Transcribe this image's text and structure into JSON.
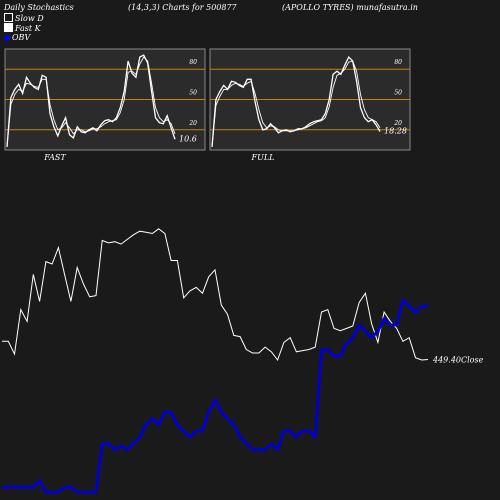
{
  "header": {
    "left": "Daily Stochastics",
    "middle": "(14,3,3) Charts for 500877",
    "right": "(APOLLO TYRES) munafasutra.in"
  },
  "legend": [
    {
      "label": "Slow  D",
      "swatch": "outline"
    },
    {
      "label": "Fast K",
      "swatch": "fill"
    },
    {
      "label": "OBV",
      "swatch": "blue"
    }
  ],
  "colors": {
    "background": "#1a1a1a",
    "panel": "#2b2b2b",
    "panel_border": "#888888",
    "level_line": "#c8820a",
    "line": "#ffffff",
    "obv": "#0000cc"
  },
  "chart_data": [
    {
      "type": "line",
      "panel": "FAST",
      "title": "FAST",
      "ylim": [
        0,
        100
      ],
      "levels": [
        20,
        50,
        80
      ],
      "yticks": [
        "80",
        "50",
        "20"
      ],
      "last_value_label": "10.6",
      "series": [
        {
          "name": "Fast K",
          "values": [
            3,
            52,
            60,
            65,
            56,
            72,
            66,
            62,
            60,
            74,
            72,
            36,
            23,
            14,
            24,
            32,
            15,
            12,
            23,
            18,
            17,
            20,
            22,
            19,
            25,
            29,
            30,
            28,
            32,
            42,
            58,
            88,
            76,
            72,
            92,
            94,
            86,
            58,
            32,
            27,
            26,
            34,
            22,
            10.6
          ]
        },
        {
          "name": "Slow  D",
          "values": [
            3,
            45,
            55,
            60,
            58,
            66,
            65,
            63,
            62,
            70,
            70,
            45,
            30,
            20,
            22,
            27,
            22,
            16,
            20,
            20,
            18,
            19,
            21,
            21,
            23,
            26,
            28,
            29,
            30,
            37,
            50,
            77,
            78,
            75,
            85,
            92,
            88,
            66,
            42,
            32,
            28,
            30,
            26,
            16
          ]
        }
      ]
    },
    {
      "type": "line",
      "panel": "FULL",
      "title": "FULL",
      "ylim": [
        0,
        100
      ],
      "levels": [
        20,
        50,
        80
      ],
      "yticks": [
        "80",
        "50",
        "20"
      ],
      "last_value_label": "18.28",
      "series": [
        {
          "name": "Fast K",
          "values": [
            3,
            50,
            58,
            64,
            60,
            68,
            67,
            64,
            62,
            70,
            70,
            48,
            30,
            20,
            21,
            26,
            22,
            17,
            19,
            20,
            18,
            19,
            21,
            21,
            23,
            26,
            28,
            29,
            30,
            36,
            50,
            75,
            78,
            75,
            84,
            92,
            88,
            68,
            42,
            32,
            28,
            30,
            25,
            18.28
          ]
        },
        {
          "name": "Slow  D",
          "values": [
            3,
            44,
            53,
            60,
            60,
            64,
            66,
            65,
            63,
            66,
            68,
            56,
            40,
            27,
            22,
            24,
            23,
            20,
            19,
            19,
            19,
            19,
            20,
            21,
            22,
            24,
            26,
            28,
            29,
            32,
            43,
            62,
            74,
            76,
            80,
            87,
            88,
            78,
            55,
            40,
            32,
            30,
            28,
            22
          ]
        }
      ]
    },
    {
      "type": "line",
      "panel": "price-obv",
      "close_label": "449.40Close",
      "series": [
        {
          "name": "Close",
          "values": [
            465,
            465,
            454,
            492,
            482,
            522,
            499,
            533,
            531,
            545,
            522,
            499,
            528,
            514,
            503,
            504,
            551,
            549,
            550,
            548,
            552,
            556,
            559,
            558,
            557,
            561,
            557,
            534,
            534,
            502,
            508,
            511,
            506,
            520,
            526,
            496,
            488,
            470,
            469,
            458,
            455,
            455,
            460,
            456,
            449,
            464,
            468,
            456,
            457,
            458,
            460,
            490,
            492,
            476,
            474,
            476,
            478,
            498,
            506,
            480,
            464,
            490,
            482,
            476,
            465,
            468,
            451,
            449,
            449.4
          ]
        },
        {
          "name": "OBV",
          "values": [
            -210,
            -210,
            -210,
            -210,
            -210,
            -210,
            -205,
            -214,
            -214,
            -214,
            -210,
            -210,
            -214,
            -214,
            -214,
            -214,
            -175,
            -175,
            -180,
            -177,
            -180,
            -175,
            -170,
            -160,
            -155,
            -160,
            -150,
            -150,
            -160,
            -165,
            -170,
            -165,
            -165,
            -150,
            -140,
            -150,
            -155,
            -160,
            -170,
            -175,
            -180,
            -180,
            -180,
            -175,
            -180,
            -165,
            -165,
            -170,
            -165,
            -165,
            -170,
            -100,
            -100,
            -105,
            -105,
            -95,
            -90,
            -80,
            -85,
            -90,
            -85,
            -75,
            -80,
            -80,
            -60,
            -65,
            -70,
            -65,
            -65
          ]
        }
      ]
    }
  ]
}
